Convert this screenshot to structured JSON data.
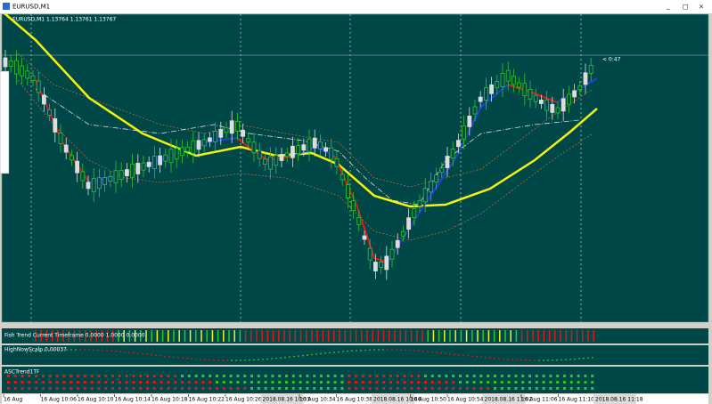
{
  "window": {
    "title": "EURUSD,M1"
  },
  "chart": {
    "info": "EURUSD,M1 1.13764 1.13761 1.13767",
    "countdown": "< 0:47"
  },
  "indicators": [
    {
      "label": "Fish Trend Current Timeframe 0.0000 1.0000 0.0000"
    },
    {
      "label": "HighNowScalp 0.00037"
    },
    {
      "label": "ASCTrend1TF"
    }
  ],
  "time_axis": [
    "16 Aug",
    "16 Aug 10:06",
    "16 Aug 10:10",
    "16 Aug 10:14",
    "16 Aug 10:18",
    "16 Aug 10:22",
    "16 Aug 10:26",
    "2018.08.16 10:33",
    "16 Aug 10:34",
    "16 Aug 10:38",
    "2018.08.16 10:46",
    "16 Aug 10:50",
    "16 Aug 10:54",
    "2018.08.16 11:02",
    "16 Aug 11:06",
    "16 Aug 11:10",
    "2018.08.16 11:18"
  ]
}
